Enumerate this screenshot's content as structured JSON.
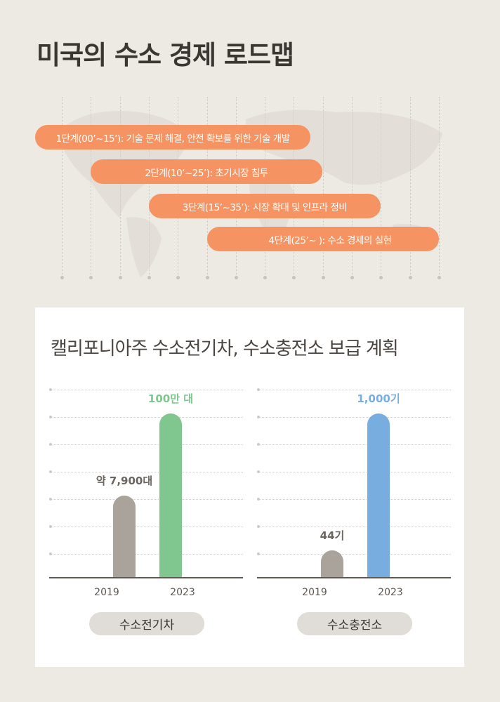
{
  "title": "미국의 수소 경제 로드맵",
  "phases": [
    {
      "label": "1단계(00’~15’): 기술 문제 해결, 안전 확보를 위한 기술 개발"
    },
    {
      "label": "2단계(10’~25’): 초기시장 침투"
    },
    {
      "label": "3단계(15’~35’): 시장 확대 및 인프라 정비"
    },
    {
      "label": "4단계(25’~ ): 수소 경제의 실현"
    }
  ],
  "colors": {
    "phase": "#f59462",
    "gray_bar": "#a9a39b",
    "green_bar": "#80c68f",
    "blue_bar": "#78aedf",
    "background": "#ede9e3"
  },
  "card_title": "캘리포니아주 수소전기차, 수소충전소 보급 계획",
  "chart_data": [
    {
      "type": "bar",
      "title": "수소전기차",
      "categories": [
        "2019",
        "2023"
      ],
      "values": [
        7900,
        1000000
      ],
      "data_labels": [
        "약 7,900대",
        "100만 대"
      ],
      "bar_levels": [
        3,
        6
      ],
      "grid_levels": 7,
      "colors": [
        "#a9a39b",
        "#80c68f"
      ],
      "label_colors": [
        "#6b6560",
        "#80c68f"
      ],
      "grid": true
    },
    {
      "type": "bar",
      "title": "수소충전소",
      "categories": [
        "2019",
        "2023"
      ],
      "values": [
        44,
        1000
      ],
      "data_labels": [
        "44기",
        "1,000기"
      ],
      "bar_levels": [
        1,
        6
      ],
      "grid_levels": 7,
      "colors": [
        "#a9a39b",
        "#78aedf"
      ],
      "label_colors": [
        "#6b6560",
        "#78aedf"
      ],
      "grid": true
    }
  ]
}
